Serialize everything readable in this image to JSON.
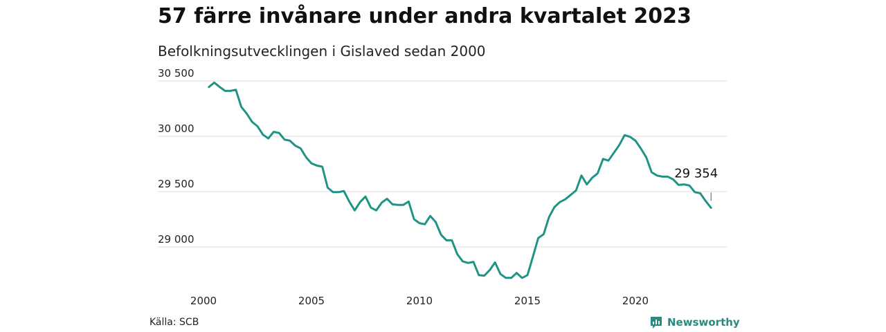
{
  "title": "57 färre invånare under andra kvartalet 2023",
  "subtitle": "Befolkningsutvecklingen i Gislaved sedan 2000",
  "source": "Källa: SCB",
  "brand": {
    "name": "Newsworthy",
    "icon": "newsworthy-logo-icon",
    "color": "#2a8a7f"
  },
  "chart_data": {
    "type": "line",
    "title": "57 färre invånare under andra kvartalet 2023",
    "subtitle": "Befolkningsutvecklingen i Gislaved sedan 2000",
    "xlabel": "",
    "ylabel": "",
    "xlim": [
      2000,
      2024.5
    ],
    "ylim": [
      28650,
      30600
    ],
    "x_ticks": [
      2000,
      2005,
      2010,
      2015,
      2020
    ],
    "x_tick_labels": [
      "2000",
      "2005",
      "2010",
      "2015",
      "2020"
    ],
    "y_ticks": [
      29000,
      29500,
      30000,
      30500
    ],
    "y_tick_labels": [
      "29 000",
      "29 500",
      "30 000",
      "30 500"
    ],
    "grid": "horizontal",
    "line_color": "#1f9485",
    "annotation": {
      "x": 2023.5,
      "y": 29354,
      "text": "29 354"
    },
    "series": [
      {
        "x": [
          2000.25,
          2000.5,
          2000.75,
          2001.0,
          2001.25,
          2001.5,
          2001.75,
          2002.0,
          2002.25,
          2002.5,
          2002.75,
          2003.0,
          2003.25,
          2003.5,
          2003.75,
          2004.0,
          2004.25,
          2004.5,
          2004.75,
          2005.0,
          2005.25,
          2005.5,
          2005.75,
          2006.0,
          2006.25,
          2006.5,
          2006.75,
          2007.0,
          2007.25,
          2007.5,
          2007.75,
          2008.0,
          2008.25,
          2008.5,
          2008.75,
          2009.0,
          2009.25,
          2009.5,
          2009.75,
          2010.0,
          2010.25,
          2010.5,
          2010.75,
          2011.0,
          2011.25,
          2011.5,
          2011.75,
          2012.0,
          2012.25,
          2012.5,
          2012.75,
          2013.0,
          2013.25,
          2013.5,
          2013.75,
          2014.0,
          2014.25,
          2014.5,
          2014.75,
          2015.0,
          2015.25,
          2015.5,
          2015.75,
          2016.0,
          2016.25,
          2016.5,
          2016.75,
          2017.0,
          2017.25,
          2017.5,
          2017.75,
          2018.0,
          2018.25,
          2018.5,
          2018.75,
          2019.0,
          2019.25,
          2019.5,
          2019.75,
          2020.0,
          2020.25,
          2020.5,
          2020.75,
          2021.0,
          2021.25,
          2021.5,
          2021.75,
          2022.0,
          2022.25,
          2022.5,
          2022.75,
          2023.0,
          2023.25,
          2023.5
        ],
        "values": [
          30445,
          30485,
          30445,
          30410,
          30410,
          30420,
          30265,
          30205,
          30130,
          30090,
          30015,
          29980,
          30040,
          30030,
          29970,
          29960,
          29915,
          29890,
          29810,
          29755,
          29735,
          29725,
          29535,
          29495,
          29495,
          29505,
          29410,
          29330,
          29405,
          29455,
          29355,
          29330,
          29400,
          29435,
          29385,
          29380,
          29380,
          29410,
          29250,
          29215,
          29205,
          29280,
          29225,
          29110,
          29060,
          29060,
          28935,
          28870,
          28855,
          28865,
          28745,
          28740,
          28790,
          28860,
          28755,
          28720,
          28720,
          28765,
          28720,
          28745,
          28910,
          29080,
          29115,
          29270,
          29360,
          29405,
          29430,
          29470,
          29510,
          29645,
          29565,
          29625,
          29665,
          29795,
          29780,
          29850,
          29920,
          30010,
          29995,
          29960,
          29890,
          29810,
          29675,
          29645,
          29635,
          29635,
          29610,
          29560,
          29565,
          29555,
          29495,
          29485,
          29415,
          29354
        ]
      }
    ]
  }
}
